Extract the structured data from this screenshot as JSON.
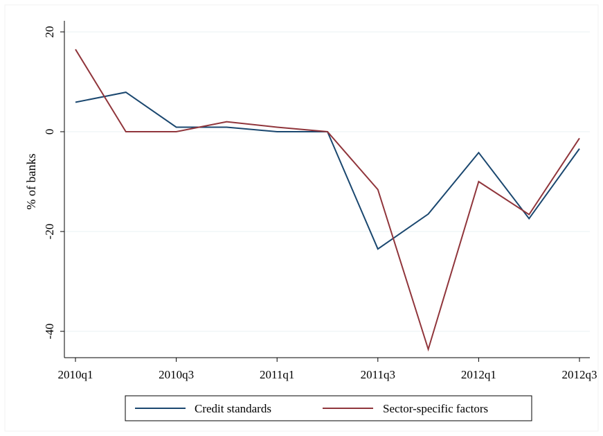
{
  "chart_data": {
    "type": "line",
    "title": "",
    "xlabel": "",
    "ylabel": "% of banks",
    "x": [
      "2010q1",
      "2010q2",
      "2010q3",
      "2010q4",
      "2011q1",
      "2011q2",
      "2011q3",
      "2011q4",
      "2012q1",
      "2012q2",
      "2012q3"
    ],
    "x_tick_labels": [
      "2010q1",
      "2010q3",
      "2011q1",
      "2011q3",
      "2012q1",
      "2012q3"
    ],
    "y_ticks": [
      20,
      0,
      -20,
      -40
    ],
    "ylim": [
      -45,
      21
    ],
    "grid": true,
    "legend_position": "bottom",
    "series": [
      {
        "name": "Credit standards",
        "color": "#1a476f",
        "values": [
          5.9,
          7.9,
          0.9,
          0.9,
          0.0,
          0.0,
          -23.5,
          -16.5,
          -4.2,
          -17.4,
          -3.4
        ]
      },
      {
        "name": "Sector-specific factors",
        "color": "#90353b",
        "values": [
          16.5,
          0.0,
          0.0,
          2.0,
          0.9,
          0.0,
          -11.6,
          -43.6,
          -10.0,
          -16.6,
          -1.3
        ]
      }
    ]
  }
}
